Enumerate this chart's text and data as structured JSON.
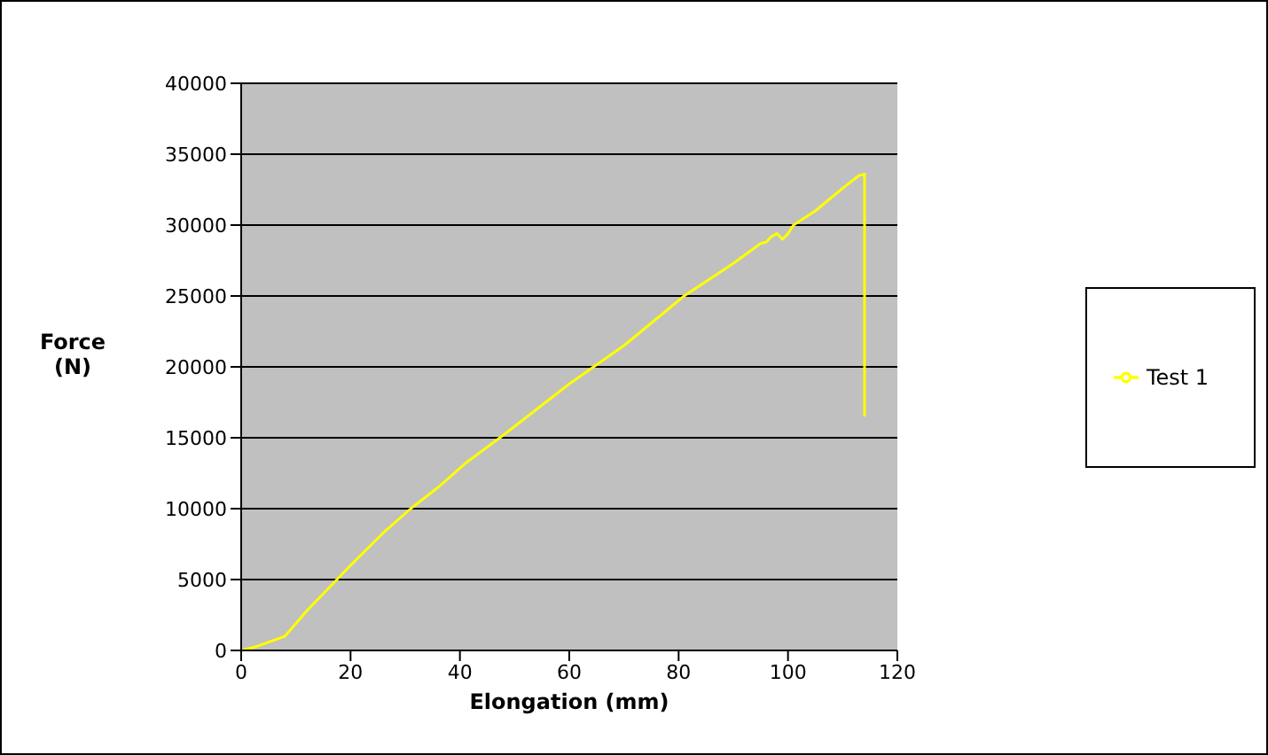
{
  "chart_data": {
    "type": "line",
    "xlabel": "Elongation  (mm)",
    "ylabel": "Force (N)",
    "x": [
      0,
      3,
      8,
      12,
      17,
      20,
      26,
      31,
      36,
      41,
      48,
      60,
      70,
      81,
      90,
      95,
      96,
      97,
      98,
      99,
      100,
      101,
      105,
      110,
      113,
      114,
      114
    ],
    "series": [
      {
        "name": "Test 1",
        "color": "#ffff00",
        "values": [
          0,
          300,
          1000,
          2800,
          4800,
          6000,
          8300,
          10000,
          11500,
          13200,
          15200,
          18800,
          21500,
          25000,
          27300,
          28700,
          28800,
          29200,
          29400,
          29000,
          29400,
          30000,
          31000,
          32600,
          33500,
          33600,
          16500
        ]
      }
    ],
    "xlim": [
      0,
      120
    ],
    "xticks": [
      0,
      20,
      40,
      60,
      80,
      100,
      120
    ],
    "ylim": [
      0,
      40000
    ],
    "yticks": [
      0,
      5000,
      10000,
      15000,
      20000,
      25000,
      30000,
      35000,
      40000
    ],
    "grid": "y",
    "legend": "right",
    "marker": "none",
    "line_style": "solid"
  }
}
